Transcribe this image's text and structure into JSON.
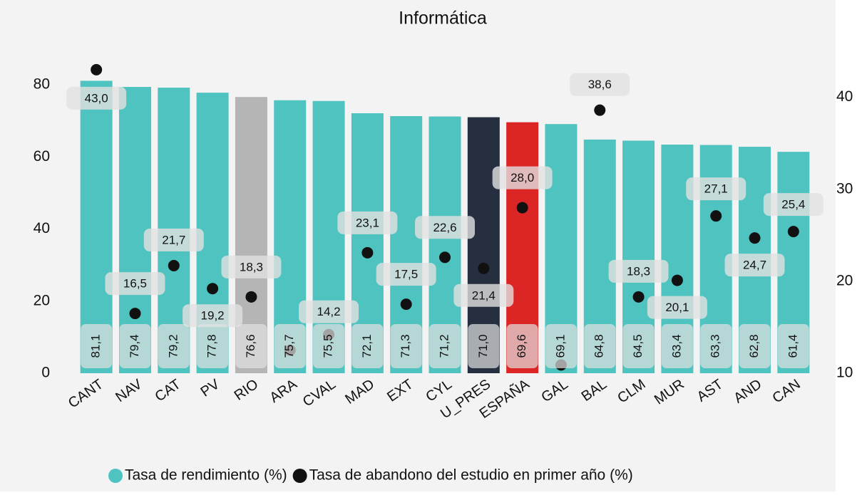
{
  "chart_data": {
    "type": "bar",
    "title": "Informática",
    "categories": [
      "CANT",
      "NAV",
      "CAT",
      "PV",
      "RIO",
      "ARA",
      "CVAL",
      "MAD",
      "EXT",
      "CYL",
      "U_PRES",
      "ESPAÑA",
      "GAL",
      "BAL",
      "CLM",
      "MUR",
      "AST",
      "AND",
      "CAN"
    ],
    "series": [
      {
        "name": "Tasa de rendimiento (%)",
        "type": "bar",
        "color": "#4fc3bf",
        "colors": [
          "#4fc3bf",
          "#4fc3bf",
          "#4fc3bf",
          "#4fc3bf",
          "#b5b5b5",
          "#4fc3bf",
          "#4fc3bf",
          "#4fc3bf",
          "#4fc3bf",
          "#4fc3bf",
          "#252f3f",
          "#dc2525",
          "#4fc3bf",
          "#4fc3bf",
          "#4fc3bf",
          "#4fc3bf",
          "#4fc3bf",
          "#4fc3bf",
          "#4fc3bf"
        ],
        "values": [
          81.1,
          79.4,
          79.2,
          77.8,
          76.6,
          75.7,
          75.5,
          72.1,
          71.3,
          71.2,
          71.0,
          69.6,
          69.1,
          64.8,
          64.5,
          63.4,
          63.3,
          62.8,
          61.4
        ],
        "value_labels": [
          "81,1",
          "79,4",
          "79,2",
          "77,8",
          "76,6",
          "75,7",
          "75,5",
          "72,1",
          "71,3",
          "71,2",
          "71,0",
          "69,6",
          "69,1",
          "64,8",
          "64,5",
          "63,4",
          "63,3",
          "62,8",
          "61,4"
        ]
      },
      {
        "name": "Tasa de abandono del estudio en primer año (%)",
        "type": "scatter",
        "axis": "y2",
        "color": "#111111",
        "values": [
          43.0,
          16.5,
          21.7,
          19.2,
          18.3,
          12.5,
          14.2,
          23.1,
          17.5,
          22.6,
          21.4,
          28.0,
          10.9,
          38.6,
          18.3,
          20.1,
          27.1,
          24.7,
          25.4
        ],
        "value_labels": [
          "43,0",
          "16,5",
          "21,7",
          "19,2",
          "18,3",
          null,
          "14,2",
          "23,1",
          "17,5",
          "22,6",
          "21,4",
          "28,0",
          null,
          "38,6",
          "18,3",
          "20,1",
          "27,1",
          "24,7",
          "25,4"
        ]
      }
    ],
    "ylim": [
      0,
      88
    ],
    "yticks": [
      0,
      20,
      40,
      60,
      80
    ],
    "y2lim": [
      10,
      44.5
    ],
    "y2ticks": [
      10,
      20,
      30,
      40
    ],
    "grid": false,
    "legend": "bottom"
  }
}
